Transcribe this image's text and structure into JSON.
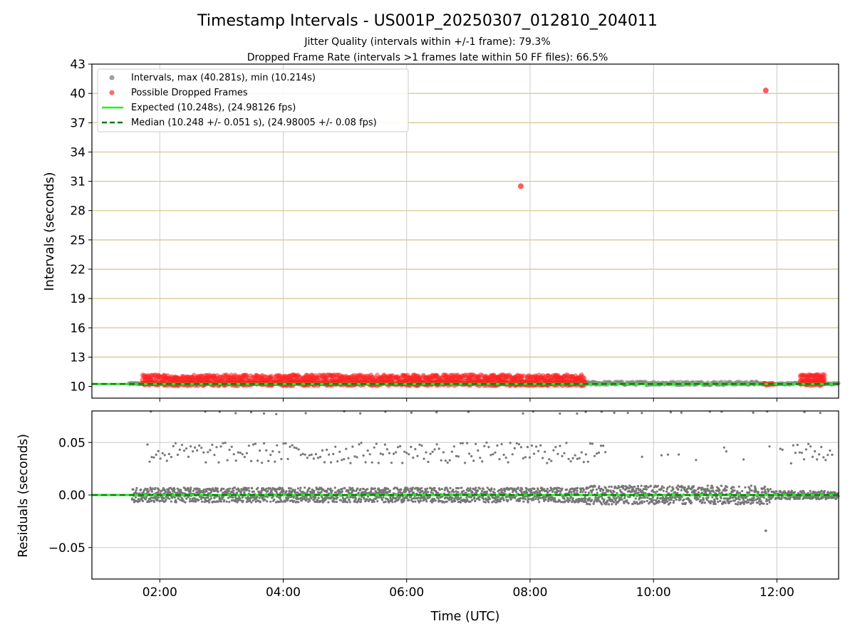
{
  "figure": {
    "title": "Timestamp Intervals - US001P_20250307_012810_204011",
    "subtitle_1": "Jitter Quality (intervals within +/-1 frame): 79.3%",
    "subtitle_2": "Dropped Frame Rate (intervals >1 frames late within 50 FF files): 66.5%"
  },
  "chart_data": [
    {
      "type": "scatter",
      "panel": "intervals",
      "ylabel": "Intervals (seconds)",
      "ylim": [
        8.8,
        43
      ],
      "xlim_hours": [
        0.9,
        13.0
      ],
      "yticks": [
        10,
        13,
        16,
        19,
        22,
        25,
        28,
        31,
        34,
        37,
        40,
        43
      ],
      "ytick_labels": [
        "10",
        "13",
        "16",
        "19",
        "22",
        "25",
        "28",
        "31",
        "34",
        "37",
        "40",
        "43"
      ],
      "horizontal_gridlines": [
        13,
        16,
        19,
        22,
        25,
        28,
        31,
        34,
        37,
        40
      ],
      "vertical_gridlines": true,
      "legend_position": "top-left",
      "legend": [
        {
          "label": "Intervals, max (40.281s), min (10.214s)",
          "marker": "gray-dot",
          "color": "#a0a0a0"
        },
        {
          "label": "Possible Dropped Frames",
          "marker": "red-dot",
          "color": "#ff5050"
        },
        {
          "label": "Expected (10.248s), (24.98126 fps)",
          "marker": "solid-line",
          "color": "#22ee22"
        },
        {
          "label": "Median (10.248 +/- 0.051 s), (24.98005 +/- 0.08 fps)",
          "marker": "dashed-line",
          "color": "#118811"
        }
      ],
      "series": [
        {
          "name": "Intervals, max (40.281s), min (10.214s)",
          "color": "#808080",
          "notes_x_hours_start": 1.5,
          "notes_x_hours_end": 13.0,
          "typical_value": 10.25
        },
        {
          "name": "Possible Dropped Frames",
          "color": "#ff0000",
          "dense_band": {
            "x_start": 1.72,
            "x_end": 8.9,
            "values": [
              10.25,
              10.6,
              11.0
            ]
          },
          "outliers": [
            {
              "x": 7.85,
              "y": 30.5
            },
            {
              "x": 11.82,
              "y": 40.3
            }
          ],
          "cluster_2": {
            "x_start": 11.78,
            "x_end": 11.95,
            "values": [
              10.25
            ]
          },
          "cluster_3": {
            "x_start": 12.38,
            "x_end": 12.78,
            "values": [
              10.25,
              10.65,
              11.1
            ]
          }
        },
        {
          "name": "Expected (10.248s), (24.98126 fps)",
          "value": 10.248,
          "color": "#22ee22"
        },
        {
          "name": "Median (10.248 +/- 0.051 s), (24.98005 +/- 0.08 fps)",
          "value": 10.248,
          "color": "#117711"
        }
      ]
    },
    {
      "type": "scatter",
      "panel": "residuals",
      "xlabel": "Time (UTC)",
      "ylabel": "Residuals (seconds)",
      "ylim": [
        -0.08,
        0.08
      ],
      "yticks": [
        -0.05,
        0.0,
        0.05
      ],
      "ytick_labels": [
        "−0.05",
        "0.00",
        "0.05"
      ],
      "xlim_hours": [
        0.9,
        13.0
      ],
      "xticks_hours": [
        2,
        4,
        6,
        8,
        10,
        12
      ],
      "xtick_labels": [
        "02:00",
        "04:00",
        "06:00",
        "08:00",
        "10:00",
        "12:00"
      ],
      "grid": true,
      "series": [
        {
          "name": "residuals",
          "color": "#777777",
          "main_band": {
            "x_start": 1.55,
            "x_end": 13.0,
            "range": [
              -0.008,
              0.008
            ]
          },
          "upper_band": {
            "x_start": 1.8,
            "x_end": 12.9,
            "range": [
              0.03,
              0.05
            ]
          },
          "outliers": [
            {
              "x": 11.82,
              "y": -0.034
            }
          ]
        },
        {
          "name": "expected",
          "value": 0.0,
          "color": "#22ee22"
        },
        {
          "name": "median",
          "value": 0.0,
          "color": "#117711"
        }
      ]
    }
  ]
}
